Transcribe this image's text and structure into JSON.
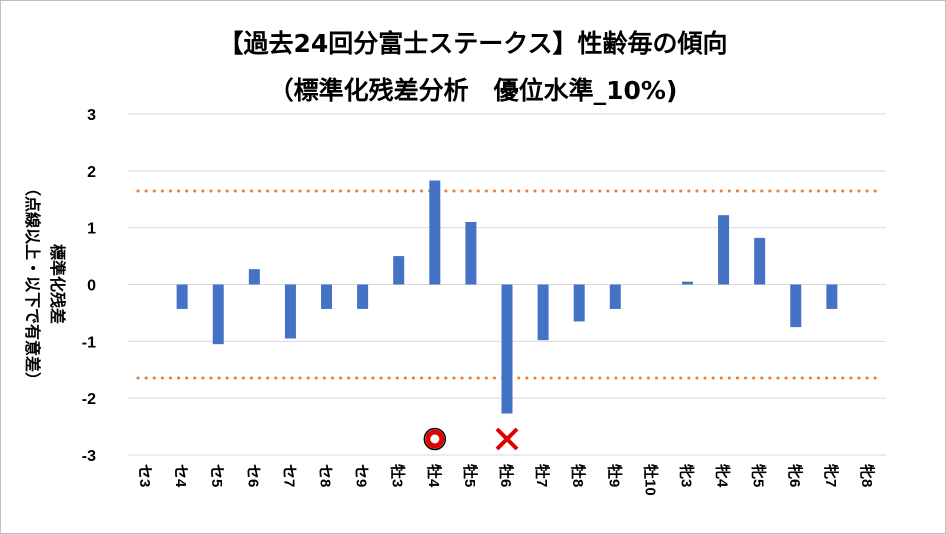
{
  "chart_data": {
    "type": "bar",
    "title": "【過去24回分富士ステークス】性齢毎の傾向",
    "subtitle": "（標準化残差分析　優位水準_10%)",
    "ylabel": "標準化残差",
    "ylabel_note": "（点線以上・以下で有意差）",
    "ylim": [
      -3,
      3
    ],
    "yticks": [
      3,
      2,
      1,
      0,
      -1,
      -2,
      -3
    ],
    "categories": [
      "セ3",
      "セ4",
      "セ5",
      "セ6",
      "セ7",
      "セ8",
      "セ9",
      "牡3",
      "牡4",
      "牡5",
      "牡6",
      "牡7",
      "牡8",
      "牡9",
      "牡10",
      "牝3",
      "牝4",
      "牝5",
      "牝6",
      "牝7",
      "牝8"
    ],
    "values": [
      0,
      -0.43,
      -1.05,
      0.27,
      -0.95,
      -0.43,
      -0.43,
      0.5,
      1.83,
      1.1,
      -2.27,
      -0.98,
      -0.65,
      -0.43,
      0,
      0.05,
      1.22,
      0.82,
      -0.75,
      -0.43,
      0
    ],
    "thresholds": [
      1.645,
      -1.645
    ],
    "bar_color": "#4472c4",
    "threshold_color": "#ed7d31",
    "markers": [
      {
        "category": "牡4",
        "symbol": "○",
        "color": "#e00000"
      },
      {
        "category": "牡6",
        "symbol": "✕",
        "color": "#e00000"
      }
    ]
  }
}
